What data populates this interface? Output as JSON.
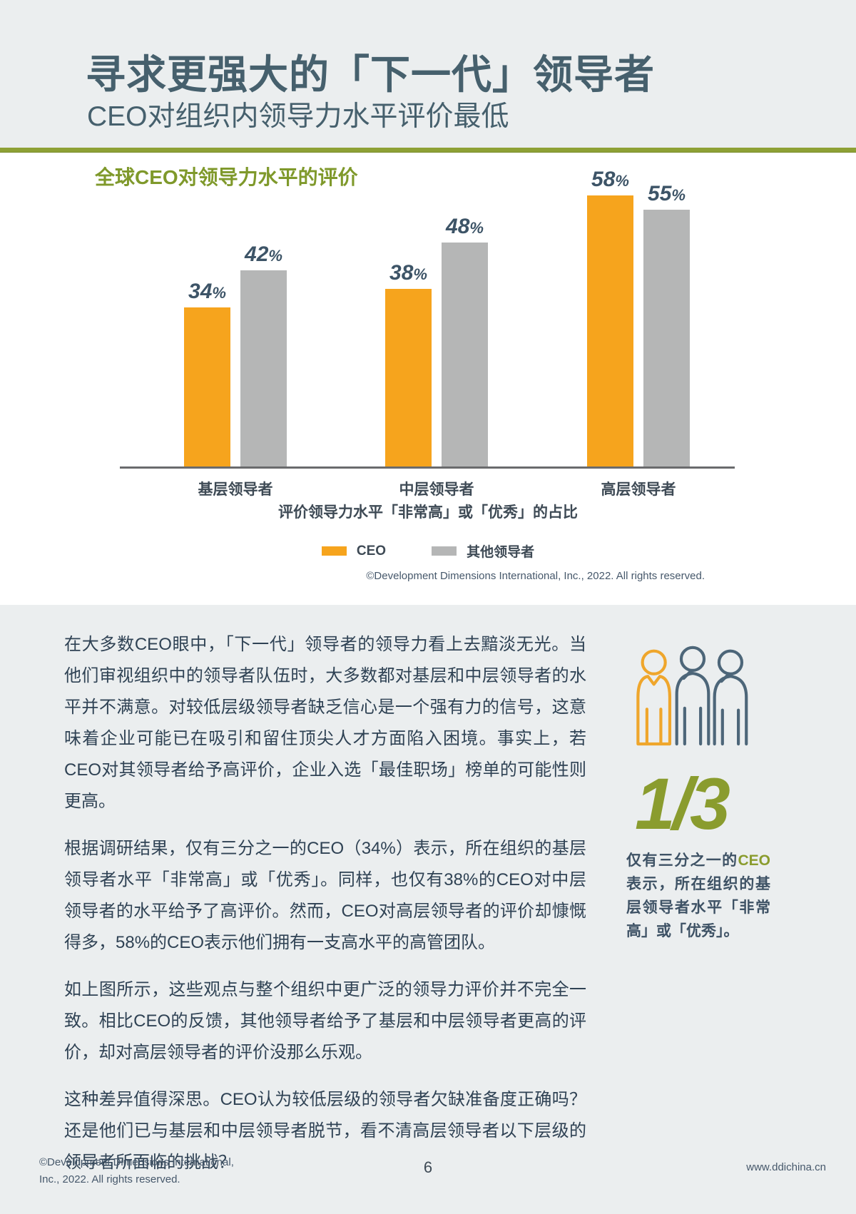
{
  "header": {
    "title": "寻求更强大的「下一代」领导者",
    "subtitle": "CEO对组织内领导力水平评价最低"
  },
  "chart": {
    "title": "全球CEO对领导力水平的评价",
    "caption": "评价领导力水平「非常高」或「优秀」的占比",
    "copyright": "©Development Dimensions International, Inc., 2022. All rights reserved."
  },
  "chart_data": {
    "type": "bar",
    "title": "全球CEO对领导力水平的评价",
    "categories": [
      "基层领导者",
      "中层领导者",
      "高层领导者"
    ],
    "series": [
      {
        "name": "CEO",
        "color": "#F6A41D",
        "values": [
          34,
          38,
          58
        ]
      },
      {
        "name": "其他领导者",
        "color": "#B5B6B6",
        "values": [
          42,
          48,
          55
        ]
      }
    ],
    "value_suffix": "%",
    "xlabel": "评价领导力水平「非常高」或「优秀」的占比",
    "ylabel": "",
    "ylim": [
      0,
      65
    ],
    "grid": false,
    "legend_position": "bottom",
    "data_labels": true
  },
  "body": {
    "paragraphs": [
      "在大多数CEO眼中，「下一代」领导者的领导力看上去黯淡无光。当他们审视组织中的领导者队伍时，大多数都对基层和中层领导者的水平并不满意。对较低层级领导者缺乏信心是一个强有力的信号，这意味着企业可能已在吸引和留住顶尖人才方面陷入困境。事实上，若CEO对其领导者给予高评价，企业入选「最佳职场」榜单的可能性则更高。",
      "根据调研结果，仅有三分之一的CEO（34%）表示，所在组织的基层领导者水平「非常高」或「优秀」。同样，也仅有38%的CEO对中层领导者的水平给予了高评价。然而，CEO对高层领导者的评价却慷慨得多，58%的CEO表示他们拥有一支高水平的高管团队。",
      "如上图所示，这些观点与整个组织中更广泛的领导力评价并不完全一致。相比CEO的反馈，其他领导者给予了基层和中层领导者更高的评价，却对高层领导者的评价没那么乐观。",
      "这种差异值得深思。CEO认为较低层级的领导者欠缺准备度正确吗？还是他们已与基层和中层领导者脱节，看不清高层领导者以下层级的领导者所面临的挑战？"
    ]
  },
  "sidebar": {
    "people_icon": "three-people-outline-icon",
    "stat": "1/3",
    "text_prefix": "仅有三分之一的",
    "text_highlight": "CEO",
    "text_rest": "表示，所在组织的基层领导者水平「非常高」或「优秀」。"
  },
  "footer": {
    "copyright_line1": "©Development Dimensions International,",
    "copyright_line2": "Inc., 2022. All rights reserved.",
    "page_number": "6",
    "website": "www.ddichina.cn"
  },
  "colors": {
    "orange": "#F6A41D",
    "bar_gray": "#B5B6B6",
    "olive_green": "#8A9C2E",
    "divider_green": "#8EA135",
    "slate_heading": "#46606D",
    "slate_body": "#2F4254",
    "band_background": "#EBEEEF",
    "axis_gray": "#6A6B6D"
  }
}
